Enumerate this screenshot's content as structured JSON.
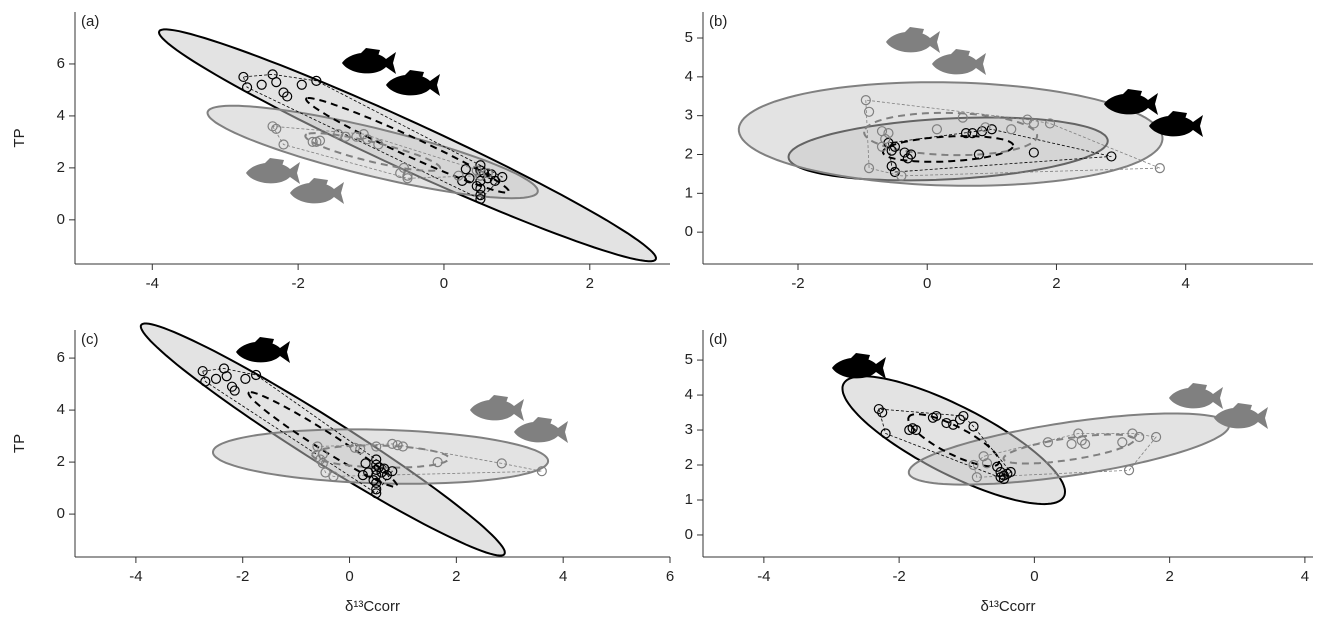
{
  "chart_data": [
    {
      "type": "scatter",
      "panel": "(a)",
      "ylabel": "TP",
      "xlim": [
        -5.06,
        3.1
      ],
      "ylim": [
        -1.7,
        8
      ],
      "xticks": [
        -4,
        -2,
        0,
        2
      ],
      "yticks": [
        0,
        2,
        4,
        6
      ],
      "series": [
        {
          "color": "#000000",
          "x": [
            -2.75,
            -2.7,
            -2.5,
            -2.35,
            -2.3,
            -2.2,
            -2.15,
            -1.95,
            -1.75,
            0.3,
            0.35,
            0.45,
            0.5,
            0.5,
            0.5,
            0.5,
            0.5,
            0.5,
            0.5,
            0.55,
            0.6,
            0.65,
            0.7,
            0.8,
            0.25
          ],
          "y": [
            5.5,
            5.1,
            5.2,
            5.6,
            5.3,
            4.9,
            4.75,
            5.2,
            5.35,
            1.95,
            1.6,
            1.3,
            2.1,
            1.9,
            1.7,
            1.5,
            1.2,
            0.95,
            0.8,
            1.8,
            1.6,
            1.75,
            1.5,
            1.65,
            1.5
          ]
        },
        {
          "color": "#808080",
          "x": [
            -2.35,
            -2.3,
            -2.2,
            -1.8,
            -1.75,
            -1.7,
            -1.45,
            -1.35,
            -1.2,
            -1.1,
            -1.05,
            -0.9,
            -0.6,
            -0.5,
            -0.55,
            -0.5,
            0.2,
            0.45,
            0.5,
            0.6
          ],
          "y": [
            3.6,
            3.5,
            2.9,
            3.0,
            3.0,
            3.05,
            3.3,
            3.2,
            3.2,
            3.3,
            3.1,
            2.9,
            1.8,
            1.6,
            2.0,
            1.7,
            1.7,
            1.9,
            1.7,
            1.8
          ]
        }
      ]
    },
    {
      "type": "scatter",
      "panel": "(b)",
      "xlim": [
        -3.47,
        5.97
      ],
      "ylim": [
        -0.82,
        5.67
      ],
      "xticks": [
        -2,
        0,
        2,
        4
      ],
      "yticks": [
        0,
        1,
        2,
        3,
        4,
        5
      ],
      "series": [
        {
          "color": "#000000",
          "x": [
            -0.55,
            -0.5,
            -0.5,
            -0.55,
            -0.35,
            -0.25,
            -0.3,
            0.6,
            0.7,
            0.8,
            0.85,
            1.0,
            1.65,
            2.85,
            -0.6
          ],
          "y": [
            1.7,
            1.55,
            2.2,
            2.1,
            2.05,
            2.0,
            1.9,
            2.55,
            2.55,
            2.0,
            2.6,
            2.65,
            2.05,
            1.95,
            2.3
          ]
        },
        {
          "color": "#808080",
          "x": [
            -0.95,
            -0.9,
            -0.9,
            -0.7,
            -0.6,
            -0.7,
            -0.65,
            -0.4,
            0.15,
            0.55,
            0.9,
            1.3,
            1.55,
            1.65,
            1.9,
            3.6
          ],
          "y": [
            3.4,
            3.1,
            1.65,
            2.6,
            2.55,
            2.2,
            2.4,
            1.45,
            2.65,
            2.95,
            2.7,
            2.65,
            2.9,
            2.8,
            2.8,
            1.65
          ]
        }
      ]
    },
    {
      "type": "scatter",
      "panel": "(c)",
      "ylabel": "TP",
      "xlabel": "δ¹³Ccorr",
      "xlim": [
        -5.14,
        6
      ],
      "ylim": [
        -1.65,
        7.08
      ],
      "xticks": [
        -4,
        -2,
        0,
        2,
        4,
        6
      ],
      "yticks": [
        0,
        2,
        4,
        6
      ],
      "series": [
        {
          "color": "#000000",
          "x": [
            -2.75,
            -2.7,
            -2.5,
            -2.35,
            -2.3,
            -2.2,
            -2.15,
            -1.95,
            -1.75,
            0.3,
            0.35,
            0.45,
            0.5,
            0.5,
            0.5,
            0.5,
            0.5,
            0.5,
            0.5,
            0.55,
            0.6,
            0.65,
            0.7,
            0.8,
            0.25
          ],
          "y": [
            5.5,
            5.1,
            5.2,
            5.6,
            5.3,
            4.9,
            4.75,
            5.2,
            5.35,
            1.95,
            1.6,
            1.3,
            2.1,
            1.9,
            1.7,
            1.5,
            1.2,
            0.95,
            0.8,
            1.8,
            1.6,
            1.75,
            1.5,
            1.65,
            1.5
          ]
        },
        {
          "color": "#808080",
          "x": [
            -0.6,
            -0.55,
            -0.5,
            -0.45,
            -0.3,
            -0.5,
            0.1,
            0.2,
            0.5,
            0.8,
            0.9,
            1.0,
            1.65,
            2.85,
            3.6
          ],
          "y": [
            2.6,
            2.1,
            1.95,
            1.6,
            1.45,
            2.3,
            2.55,
            2.5,
            2.6,
            2.7,
            2.65,
            2.6,
            2.0,
            1.95,
            1.65
          ]
        }
      ]
    },
    {
      "type": "scatter",
      "panel": "(d)",
      "xlabel": "δ¹³Ccorr",
      "xlim": [
        -4.9,
        4.12
      ],
      "ylim": [
        -0.63,
        5.86
      ],
      "xticks": [
        -4,
        -2,
        0,
        2,
        4
      ],
      "yticks": [
        0,
        1,
        2,
        3,
        4,
        5
      ],
      "series": [
        {
          "color": "#000000",
          "x": [
            -2.3,
            -2.25,
            -2.2,
            -1.85,
            -1.8,
            -1.75,
            -1.5,
            -1.45,
            -1.3,
            -1.2,
            -1.1,
            -1.05,
            -0.9,
            -0.55,
            -0.5,
            -0.45,
            -0.4,
            -0.35,
            -0.5,
            -0.45
          ],
          "y": [
            3.6,
            3.5,
            2.9,
            3.0,
            3.05,
            3.0,
            3.35,
            3.4,
            3.2,
            3.15,
            3.3,
            3.4,
            3.1,
            1.95,
            1.8,
            1.6,
            1.75,
            1.8,
            1.65,
            1.7
          ]
        },
        {
          "color": "#808080",
          "x": [
            -0.9,
            -0.75,
            -0.7,
            -0.85,
            0.2,
            0.55,
            0.65,
            0.7,
            0.75,
            1.3,
            1.45,
            1.55,
            1.8,
            1.4
          ],
          "y": [
            2.0,
            2.25,
            2.05,
            1.65,
            2.65,
            2.6,
            2.9,
            2.7,
            2.6,
            2.65,
            2.9,
            2.8,
            2.8,
            1.85
          ]
        }
      ]
    }
  ]
}
